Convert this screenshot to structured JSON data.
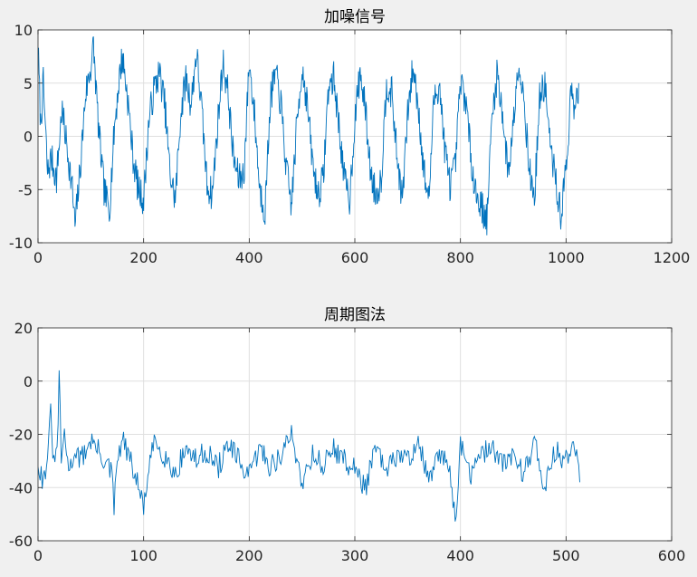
{
  "chart_data": [
    {
      "type": "line",
      "title": "加噪信号",
      "xlabel": "",
      "ylabel": "",
      "xlim": [
        0,
        1200
      ],
      "ylim": [
        -10,
        10
      ],
      "xticks": [
        0,
        200,
        400,
        600,
        800,
        1000,
        1200
      ],
      "yticks": [
        -10,
        -5,
        0,
        5,
        10
      ],
      "x_tick_labels": [
        "0",
        "200",
        "400",
        "600",
        "800",
        "1000",
        "1200"
      ],
      "y_tick_labels": [
        "-10",
        "-5",
        "0",
        "5",
        "10"
      ],
      "grid": true,
      "line_color": "#0072bd",
      "series": [
        {
          "x": [
            0,
            5,
            10,
            18,
            25,
            35,
            45,
            55,
            65,
            70,
            80,
            90,
            100,
            105,
            115,
            125,
            135,
            145,
            155,
            160,
            170,
            180,
            190,
            200,
            210,
            220,
            230,
            240,
            250,
            260,
            270,
            280,
            290,
            300,
            310,
            320,
            330,
            340,
            350,
            360,
            370,
            380,
            390,
            400,
            410,
            420,
            430,
            440,
            450,
            460,
            470,
            480,
            490,
            500,
            510,
            520,
            530,
            540,
            550,
            560,
            570,
            580,
            590,
            600,
            610,
            620,
            630,
            640,
            650,
            660,
            670,
            680,
            690,
            700,
            710,
            720,
            730,
            740,
            750,
            760,
            770,
            780,
            790,
            800,
            810,
            820,
            830,
            840,
            850,
            860,
            870,
            880,
            890,
            900,
            910,
            915,
            920,
            930,
            940,
            950,
            960,
            970,
            980,
            990,
            1000,
            1010,
            1015,
            1020,
            1024
          ],
          "values": [
            8.5,
            1.0,
            5.0,
            -3.5,
            -2.0,
            -4.0,
            2.5,
            -1.0,
            -5.0,
            -8.5,
            -3.0,
            4.0,
            6.5,
            8.5,
            0.5,
            -5.0,
            -7.0,
            1.0,
            6.0,
            7.5,
            3.5,
            -2.0,
            -5.0,
            -6.0,
            1.5,
            4.5,
            6.0,
            3.0,
            -3.5,
            -6.0,
            2.0,
            5.5,
            3.0,
            8.0,
            2.5,
            -4.5,
            -5.5,
            1.0,
            7.0,
            4.0,
            -2.0,
            -4.0,
            -3.5,
            7.0,
            2.0,
            -5.0,
            -7.0,
            3.5,
            6.0,
            3.0,
            -3.0,
            -6.5,
            1.0,
            6.5,
            3.0,
            -2.5,
            -5.5,
            -4.0,
            4.5,
            5.5,
            1.0,
            -4.0,
            -6.0,
            1.5,
            6.0,
            2.5,
            -3.5,
            -5.5,
            -4.0,
            5.0,
            4.0,
            -2.0,
            -6.0,
            2.0,
            6.5,
            3.0,
            -3.0,
            -6.0,
            3.5,
            5.0,
            -1.0,
            -4.5,
            -3.0,
            5.0,
            3.5,
            -2.0,
            -5.5,
            -6.5,
            -8.0,
            2.0,
            6.0,
            2.0,
            -3.5,
            1.0,
            7.5,
            5.0,
            4.0,
            -3.0,
            -6.0,
            3.5,
            5.0,
            -1.0,
            -4.0,
            -7.5,
            -3.0,
            4.5,
            2.0,
            3.5,
            5.0
          ]
        }
      ]
    },
    {
      "type": "line",
      "title": "周期图法",
      "xlabel": "",
      "ylabel": "",
      "xlim": [
        0,
        600
      ],
      "ylim": [
        -60,
        20
      ],
      "xticks": [
        0,
        100,
        200,
        300,
        400,
        500,
        600
      ],
      "yticks": [
        -60,
        -40,
        -20,
        0,
        20
      ],
      "x_tick_labels": [
        "0",
        "100",
        "200",
        "300",
        "400",
        "500",
        "600"
      ],
      "y_tick_labels": [
        "-60",
        "-40",
        "-20",
        "0",
        "20"
      ],
      "grid": true,
      "line_color": "#0072bd",
      "series": [
        {
          "x": [
            0,
            5,
            10,
            12,
            15,
            18,
            20,
            22,
            25,
            30,
            35,
            40,
            50,
            60,
            70,
            72,
            75,
            80,
            90,
            100,
            110,
            120,
            130,
            140,
            150,
            160,
            170,
            180,
            190,
            200,
            210,
            220,
            230,
            240,
            250,
            260,
            270,
            280,
            290,
            300,
            310,
            320,
            330,
            340,
            350,
            360,
            370,
            380,
            390,
            395,
            400,
            410,
            420,
            430,
            440,
            450,
            460,
            470,
            480,
            490,
            500,
            510,
            513
          ],
          "values": [
            -30,
            -38,
            -25,
            -12,
            -32,
            -26,
            0,
            -28,
            -22,
            -34,
            -25,
            -30,
            -22,
            -28,
            -35,
            -48,
            -30,
            -22,
            -33,
            -47,
            -22,
            -28,
            -35,
            -25,
            -30,
            -26,
            -33,
            -24,
            -30,
            -36,
            -25,
            -32,
            -28,
            -20,
            -38,
            -27,
            -32,
            -25,
            -30,
            -33,
            -40,
            -25,
            -35,
            -27,
            -30,
            -22,
            -38,
            -28,
            -32,
            -52,
            -25,
            -35,
            -28,
            -24,
            -32,
            -27,
            -35,
            -22,
            -40,
            -26,
            -30,
            -24,
            -38
          ]
        }
      ]
    }
  ]
}
